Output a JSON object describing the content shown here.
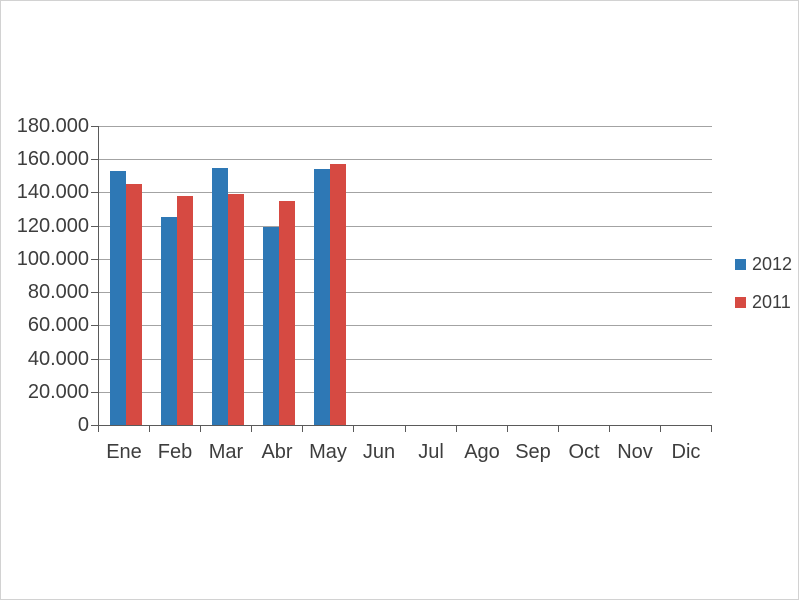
{
  "chart_data": {
    "type": "bar",
    "title": "",
    "categories": [
      "Ene",
      "Feb",
      "Mar",
      "Abr",
      "May",
      "Jun",
      "Jul",
      "Ago",
      "Sep",
      "Oct",
      "Nov",
      "Dic"
    ],
    "series": [
      {
        "name": "2012",
        "color": "#2E78B5",
        "values": [
          153000,
          125000,
          155000,
          119000,
          154000,
          null,
          null,
          null,
          null,
          null,
          null,
          null
        ]
      },
      {
        "name": "2011",
        "color": "#D64A42",
        "values": [
          145000,
          138000,
          139000,
          135000,
          157000,
          null,
          null,
          null,
          null,
          null,
          null,
          null
        ]
      }
    ],
    "y_axis": {
      "min": 0,
      "max": 180000,
      "step": 20000,
      "tick_labels": [
        "0",
        "20.000",
        "40.000",
        "60.000",
        "80.000",
        "100.000",
        "120.000",
        "140.000",
        "160.000",
        "180.000"
      ]
    },
    "xlabel": "",
    "ylabel": "",
    "grid": true,
    "legend": {
      "position": "right",
      "entries": [
        "2012",
        "2011"
      ]
    }
  },
  "colors": {
    "background": "#ffffff",
    "gridline": "#a3a3a3",
    "axis": "#5a5a5a",
    "text": "#3d3d3d",
    "series_2012": "#2E78B5",
    "series_2011": "#D64A42"
  }
}
